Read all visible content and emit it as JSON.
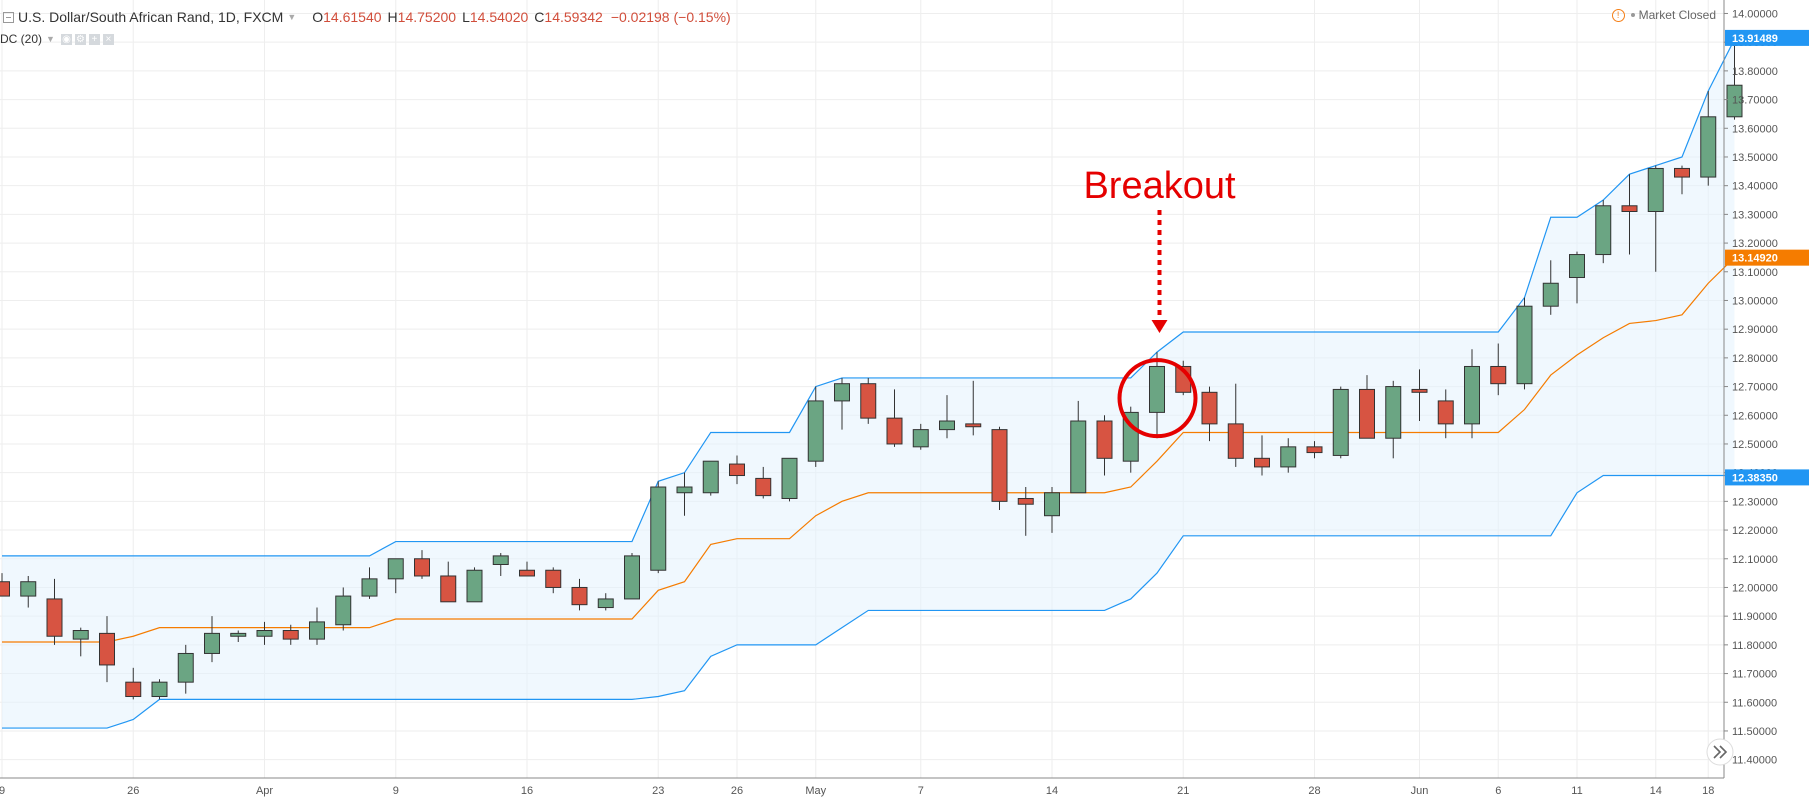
{
  "header": {
    "symbol": "U.S. Dollar/South African Rand, 1D, FXCM",
    "open_label": "O",
    "open_value": "14.61540",
    "high_label": "H",
    "high_value": "14.75200",
    "low_label": "L",
    "low_value": "14.54020",
    "close_label": "C",
    "close_value": "14.59342",
    "change": "−0.02198 (−0.15%)",
    "market_status": "Market Closed"
  },
  "indicator": {
    "label": "DC (20)"
  },
  "annotation": {
    "text": "Breakout"
  },
  "colors": {
    "up": "#6ba583",
    "down": "#d75442",
    "channel": "#2196f3",
    "basis": "#f57c00",
    "fill": "#e3f2fd",
    "grid": "#eeeeee",
    "annotation": "#e50000"
  },
  "chart_data": {
    "type": "candlestick",
    "title": "U.S. Dollar/South African Rand, 1D, FXCM",
    "ylim": [
      11.35,
      14.04
    ],
    "y_ticks": [
      "14.00000",
      "13.90000",
      "13.80000",
      "13.70000",
      "13.60000",
      "13.50000",
      "13.40000",
      "13.30000",
      "13.20000",
      "13.10000",
      "13.00000",
      "12.90000",
      "12.80000",
      "12.70000",
      "12.60000",
      "12.50000",
      "12.40000",
      "12.30000",
      "12.20000",
      "12.10000",
      "12.00000",
      "11.90000",
      "11.80000",
      "11.70000",
      "11.60000",
      "11.50000",
      "11.40000"
    ],
    "x_tick_labels": [
      {
        "label": "9",
        "index": 0
      },
      {
        "label": "26",
        "index": 5
      },
      {
        "label": "Apr",
        "index": 10
      },
      {
        "label": "9",
        "index": 15
      },
      {
        "label": "16",
        "index": 20
      },
      {
        "label": "23",
        "index": 25
      },
      {
        "label": "26",
        "index": 28
      },
      {
        "label": "May",
        "index": 31
      },
      {
        "label": "7",
        "index": 35
      },
      {
        "label": "14",
        "index": 40
      },
      {
        "label": "21",
        "index": 45
      },
      {
        "label": "28",
        "index": 50
      },
      {
        "label": "Jun",
        "index": 54
      },
      {
        "label": "6",
        "index": 57
      },
      {
        "label": "11",
        "index": 60
      },
      {
        "label": "14",
        "index": 63
      },
      {
        "label": "18",
        "index": 65
      }
    ],
    "candles": [
      [
        12.02,
        12.05,
        11.97,
        11.97
      ],
      [
        11.97,
        12.04,
        11.93,
        12.02
      ],
      [
        11.96,
        12.03,
        11.8,
        11.83
      ],
      [
        11.82,
        11.86,
        11.76,
        11.85
      ],
      [
        11.84,
        11.9,
        11.67,
        11.73
      ],
      [
        11.67,
        11.72,
        11.61,
        11.62
      ],
      [
        11.62,
        11.68,
        11.61,
        11.67
      ],
      [
        11.67,
        11.8,
        11.63,
        11.77
      ],
      [
        11.77,
        11.9,
        11.74,
        11.84
      ],
      [
        11.83,
        11.85,
        11.81,
        11.84
      ],
      [
        11.83,
        11.88,
        11.8,
        11.85
      ],
      [
        11.85,
        11.87,
        11.8,
        11.82
      ],
      [
        11.82,
        11.93,
        11.8,
        11.88
      ],
      [
        11.87,
        12.0,
        11.85,
        11.97
      ],
      [
        11.97,
        12.07,
        11.96,
        12.03
      ],
      [
        12.03,
        12.1,
        11.98,
        12.1
      ],
      [
        12.1,
        12.13,
        12.03,
        12.04
      ],
      [
        12.04,
        12.09,
        11.95,
        11.95
      ],
      [
        11.95,
        12.07,
        11.95,
        12.06
      ],
      [
        12.08,
        12.12,
        12.04,
        12.11
      ],
      [
        12.06,
        12.09,
        12.04,
        12.04
      ],
      [
        12.06,
        12.07,
        11.98,
        12.0
      ],
      [
        12.0,
        12.03,
        11.92,
        11.94
      ],
      [
        11.93,
        11.98,
        11.92,
        11.96
      ],
      [
        11.96,
        12.12,
        11.96,
        12.11
      ],
      [
        12.06,
        12.37,
        12.05,
        12.35
      ],
      [
        12.33,
        12.4,
        12.25,
        12.35
      ],
      [
        12.33,
        12.44,
        12.32,
        12.44
      ],
      [
        12.43,
        12.46,
        12.36,
        12.39
      ],
      [
        12.38,
        12.42,
        12.31,
        12.32
      ],
      [
        12.31,
        12.45,
        12.3,
        12.45
      ],
      [
        12.44,
        12.7,
        12.42,
        12.65
      ],
      [
        12.65,
        12.73,
        12.55,
        12.71
      ],
      [
        12.71,
        12.73,
        12.57,
        12.59
      ],
      [
        12.59,
        12.69,
        12.49,
        12.5
      ],
      [
        12.49,
        12.57,
        12.48,
        12.55
      ],
      [
        12.55,
        12.67,
        12.52,
        12.58
      ],
      [
        12.57,
        12.72,
        12.53,
        12.56
      ],
      [
        12.55,
        12.56,
        12.27,
        12.3
      ],
      [
        12.31,
        12.35,
        12.18,
        12.29
      ],
      [
        12.25,
        12.35,
        12.19,
        12.33
      ],
      [
        12.33,
        12.65,
        12.33,
        12.58
      ],
      [
        12.58,
        12.6,
        12.39,
        12.45
      ],
      [
        12.44,
        12.63,
        12.4,
        12.61
      ],
      [
        12.61,
        12.82,
        12.52,
        12.77
      ],
      [
        12.77,
        12.79,
        12.67,
        12.68
      ],
      [
        12.68,
        12.7,
        12.51,
        12.57
      ],
      [
        12.57,
        12.71,
        12.42,
        12.45
      ],
      [
        12.45,
        12.53,
        12.39,
        12.42
      ],
      [
        12.42,
        12.52,
        12.4,
        12.49
      ],
      [
        12.49,
        12.51,
        12.45,
        12.47
      ],
      [
        12.46,
        12.7,
        12.45,
        12.69
      ],
      [
        12.69,
        12.74,
        12.52,
        12.52
      ],
      [
        12.52,
        12.72,
        12.45,
        12.7
      ],
      [
        12.69,
        12.76,
        12.58,
        12.68
      ],
      [
        12.65,
        12.69,
        12.52,
        12.57
      ],
      [
        12.57,
        12.83,
        12.52,
        12.77
      ],
      [
        12.77,
        12.85,
        12.67,
        12.71
      ],
      [
        12.71,
        13.01,
        12.69,
        12.98
      ],
      [
        12.98,
        13.14,
        12.95,
        13.06
      ],
      [
        13.08,
        13.17,
        12.99,
        13.16
      ],
      [
        13.16,
        13.35,
        13.13,
        13.33
      ],
      [
        13.33,
        13.44,
        13.16,
        13.31
      ],
      [
        13.31,
        13.47,
        13.1,
        13.46
      ],
      [
        13.46,
        13.47,
        13.37,
        13.43
      ],
      [
        13.43,
        13.73,
        13.4,
        13.64
      ],
      [
        13.64,
        13.91,
        13.63,
        13.75
      ]
    ],
    "upper": [
      12.11,
      12.11,
      12.11,
      12.11,
      12.11,
      12.11,
      12.11,
      12.11,
      12.11,
      12.11,
      12.11,
      12.11,
      12.11,
      12.11,
      12.11,
      12.16,
      12.16,
      12.16,
      12.16,
      12.16,
      12.16,
      12.16,
      12.16,
      12.16,
      12.16,
      12.37,
      12.4,
      12.54,
      12.54,
      12.54,
      12.54,
      12.7,
      12.73,
      12.73,
      12.73,
      12.73,
      12.73,
      12.73,
      12.73,
      12.73,
      12.73,
      12.73,
      12.73,
      12.73,
      12.82,
      12.89,
      12.89,
      12.89,
      12.89,
      12.89,
      12.89,
      12.89,
      12.89,
      12.89,
      12.89,
      12.89,
      12.89,
      12.89,
      13.01,
      13.29,
      13.29,
      13.35,
      13.44,
      13.47,
      13.5,
      13.73,
      13.91
    ],
    "lower": [
      11.51,
      11.51,
      11.51,
      11.51,
      11.51,
      11.54,
      11.61,
      11.61,
      11.61,
      11.61,
      11.61,
      11.61,
      11.61,
      11.61,
      11.61,
      11.61,
      11.61,
      11.61,
      11.61,
      11.61,
      11.61,
      11.61,
      11.61,
      11.61,
      11.61,
      11.62,
      11.64,
      11.76,
      11.8,
      11.8,
      11.8,
      11.8,
      11.86,
      11.92,
      11.92,
      11.92,
      11.92,
      11.92,
      11.92,
      11.92,
      11.92,
      11.92,
      11.92,
      11.96,
      12.05,
      12.18,
      12.18,
      12.18,
      12.18,
      12.18,
      12.18,
      12.18,
      12.18,
      12.18,
      12.18,
      12.18,
      12.18,
      12.18,
      12.18,
      12.18,
      12.33,
      12.39,
      12.39,
      12.39,
      12.39,
      12.39,
      12.39
    ],
    "basis": [
      11.81,
      11.81,
      11.81,
      11.81,
      11.81,
      11.83,
      11.86,
      11.86,
      11.86,
      11.86,
      11.86,
      11.86,
      11.86,
      11.86,
      11.86,
      11.89,
      11.89,
      11.89,
      11.89,
      11.89,
      11.89,
      11.89,
      11.89,
      11.89,
      11.89,
      11.99,
      12.02,
      12.15,
      12.17,
      12.17,
      12.17,
      12.25,
      12.3,
      12.33,
      12.33,
      12.33,
      12.33,
      12.33,
      12.33,
      12.33,
      12.33,
      12.33,
      12.33,
      12.35,
      12.44,
      12.54,
      12.54,
      12.54,
      12.54,
      12.54,
      12.54,
      12.54,
      12.54,
      12.54,
      12.54,
      12.54,
      12.54,
      12.54,
      12.62,
      12.74,
      12.81,
      12.87,
      12.92,
      12.93,
      12.95,
      13.06,
      13.15
    ],
    "price_labels": [
      {
        "value": 13.91489,
        "text": "13.91489",
        "kind": "upper"
      },
      {
        "value": 13.1492,
        "text": "13.14920",
        "kind": "basis"
      },
      {
        "value": 12.3835,
        "text": "12.38350",
        "kind": "lower"
      }
    ],
    "breakout_index": 44
  }
}
